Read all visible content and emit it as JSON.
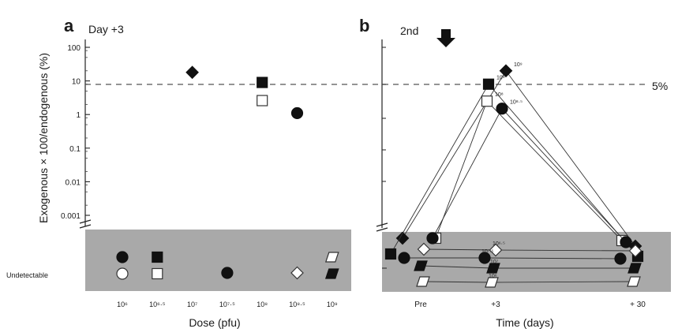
{
  "chart_data": [
    {
      "type": "scatter",
      "panel_label": "a",
      "title": "Day +3",
      "xlabel": "Dose (pfu)",
      "ylabel": "Exogenous × 100/endogenous (%)",
      "yscale": "log",
      "ylim": [
        0.001,
        100
      ],
      "y_ticks": [
        "100",
        "10",
        "1",
        "0.1",
        "0.01",
        "0.001"
      ],
      "undetectable_label": "Undetectable",
      "threshold": {
        "value": 5,
        "label": "5%"
      },
      "categories": [
        "10⁶",
        "10⁶·⁵",
        "10⁷",
        "10⁷·⁵",
        "10⁸",
        "10⁸·⁵",
        "10⁹"
      ],
      "points": [
        {
          "dose": "10⁷",
          "marker": "filled-diamond",
          "y": 18
        },
        {
          "dose": "10⁸",
          "marker": "filled-square",
          "y": 9
        },
        {
          "dose": "10⁸",
          "marker": "open-square",
          "y": 2.6
        },
        {
          "dose": "10⁸·⁵",
          "marker": "filled-circle",
          "y": 1.1
        },
        {
          "dose": "10⁶",
          "marker": "filled-circle",
          "y": "undetectable"
        },
        {
          "dose": "10⁶",
          "marker": "open-circle",
          "y": "undetectable"
        },
        {
          "dose": "10⁶·⁵",
          "marker": "filled-square",
          "y": "undetectable"
        },
        {
          "dose": "10⁶·⁵",
          "marker": "open-square",
          "y": "undetectable"
        },
        {
          "dose": "10⁷·⁵",
          "marker": "filled-circle",
          "y": "undetectable"
        },
        {
          "dose": "10⁸·⁵",
          "marker": "open-diamond",
          "y": "undetectable"
        },
        {
          "dose": "10⁹",
          "marker": "open-parallelogram",
          "y": "undetectable"
        },
        {
          "dose": "10⁹",
          "marker": "filled-parallelogram",
          "y": "undetectable"
        }
      ]
    },
    {
      "type": "line",
      "panel_label": "b",
      "annotation": "2nd",
      "xlabel": "Time (days)",
      "categories": [
        "Pre",
        "+3",
        "+ 30"
      ],
      "threshold": {
        "value": 5,
        "label": "5%"
      },
      "series": [
        {
          "dose_label": "10⁹",
          "marker": "filled-diamond",
          "values": [
            "undetectable",
            20,
            "undetectable"
          ]
        },
        {
          "dose_label": "10⁸",
          "marker": "filled-square",
          "values": [
            "undetectable",
            8,
            "undetectable"
          ]
        },
        {
          "dose_label": "10⁸",
          "marker": "open-square",
          "values": [
            "undetectable",
            2.5,
            "undetectable"
          ]
        },
        {
          "dose_label": "10⁸·⁵",
          "marker": "filled-circle",
          "values": [
            "undetectable",
            1.5,
            "undetectable"
          ]
        },
        {
          "dose_label": "10⁶·⁵",
          "marker": "open-diamond",
          "values": [
            "undetectable",
            "undetectable",
            "undetectable"
          ]
        },
        {
          "dose_label": "10⁷·⁵",
          "marker": "filled-circle",
          "values": [
            "undetectable",
            "undetectable",
            "undetectable"
          ]
        },
        {
          "dose_label": "10⁷",
          "marker": "filled-parallelogram",
          "values": [
            "undetectable",
            "undetectable",
            "undetectable"
          ]
        },
        {
          "dose_label": "10⁶",
          "marker": "open-parallelogram",
          "values": [
            "undetectable",
            "undetectable",
            "undetectable"
          ]
        }
      ]
    }
  ]
}
